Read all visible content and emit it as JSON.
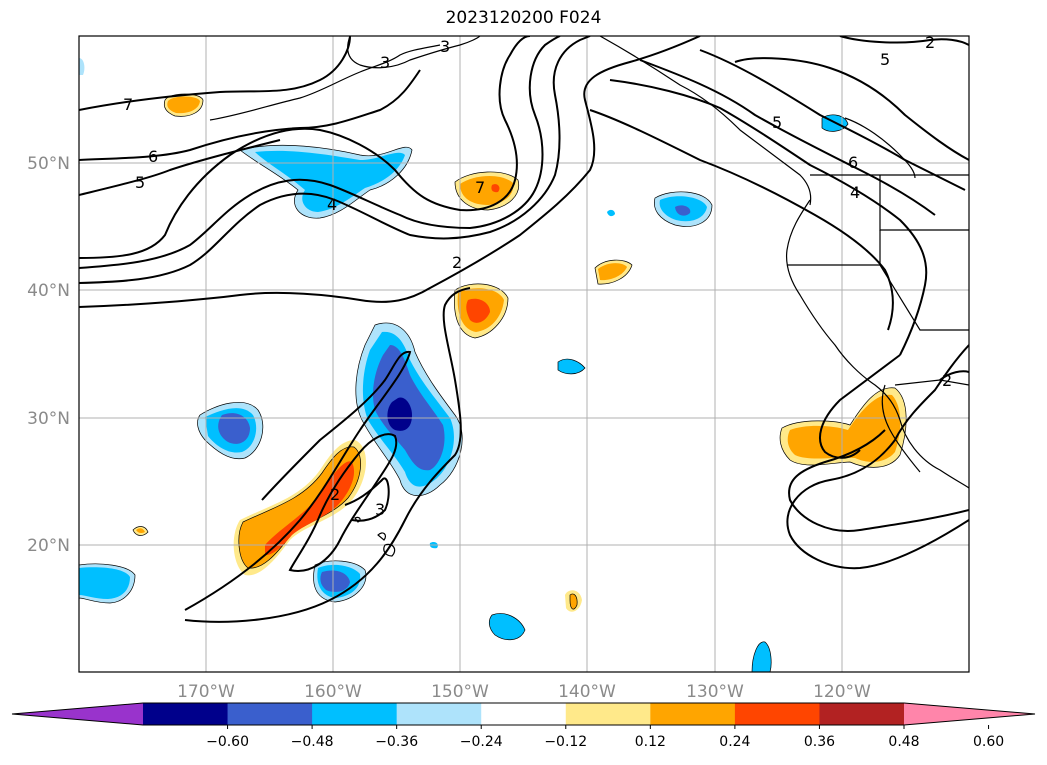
{
  "title": "2023120200 F024",
  "lon_labels": [
    "170°W",
    "160°W",
    "150°W",
    "140°W",
    "130°W",
    "120°W"
  ],
  "lat_labels": [
    "50°N",
    "40°N",
    "30°N",
    "20°N"
  ],
  "colorbar": {
    "ticks": [
      "−0.60",
      "−0.48",
      "−0.36",
      "−0.24",
      "−0.12",
      "0.12",
      "0.24",
      "0.36",
      "0.48",
      "0.60"
    ],
    "colors": [
      "#9933cc",
      "#00008b",
      "#3a5fcd",
      "#00bfff",
      "#aee3fb",
      "#ffffff",
      "#ffe98a",
      "#ffa500",
      "#ff4500",
      "#b22222",
      "#ff85aa"
    ]
  },
  "fill_colors": {
    "blue_light": "#aee3fb",
    "blue": "#00bfff",
    "blue_mid": "#3a5fcd",
    "blue_dark": "#00008b",
    "yellow": "#ffe98a",
    "orange": "#ffa500",
    "red_orange": "#ff4500"
  },
  "contour_labels": [
    "7",
    "6",
    "5",
    "4",
    "2",
    "7",
    "2",
    "3",
    "5",
    "6",
    "4",
    "5",
    "3",
    "2",
    "3",
    "2"
  ]
}
